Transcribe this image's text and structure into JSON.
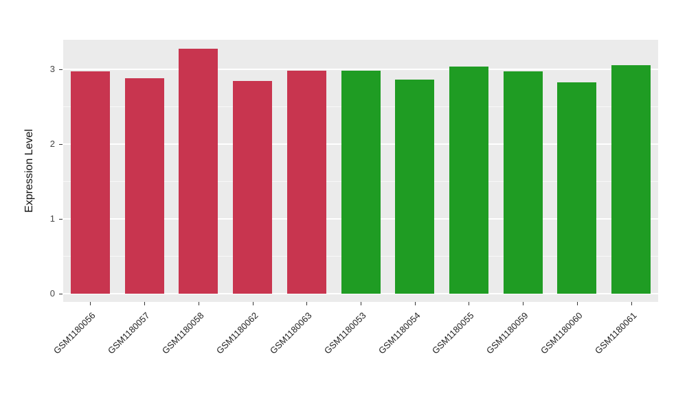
{
  "figure": {
    "ylabel": "Expression Level"
  },
  "chart_data": {
    "type": "bar",
    "title": "",
    "xlabel": "",
    "ylabel": "Expression Level",
    "categories": [
      "GSM1180056",
      "GSM1180057",
      "GSM1180058",
      "GSM1180062",
      "GSM1180063",
      "GSM1180053",
      "GSM1180054",
      "GSM1180055",
      "GSM1180059",
      "GSM1180060",
      "GSM1180061"
    ],
    "values": [
      2.97,
      2.88,
      3.27,
      2.84,
      2.98,
      2.98,
      2.86,
      3.03,
      2.97,
      2.82,
      3.05
    ],
    "groups": [
      "red",
      "red",
      "red",
      "red",
      "red",
      "green",
      "green",
      "green",
      "green",
      "green",
      "green"
    ],
    "group_colors": {
      "red": "#C8354F",
      "green": "#1F9C23"
    },
    "ylim": [
      0,
      3.5
    ],
    "yticks": [
      0,
      1,
      2,
      3
    ],
    "yticks_minor": [
      0.5,
      1.5,
      2.5
    ],
    "grid": "on",
    "legend": "none",
    "panel_background": "#EBEBEB",
    "gridline_color": "#FFFFFF"
  }
}
